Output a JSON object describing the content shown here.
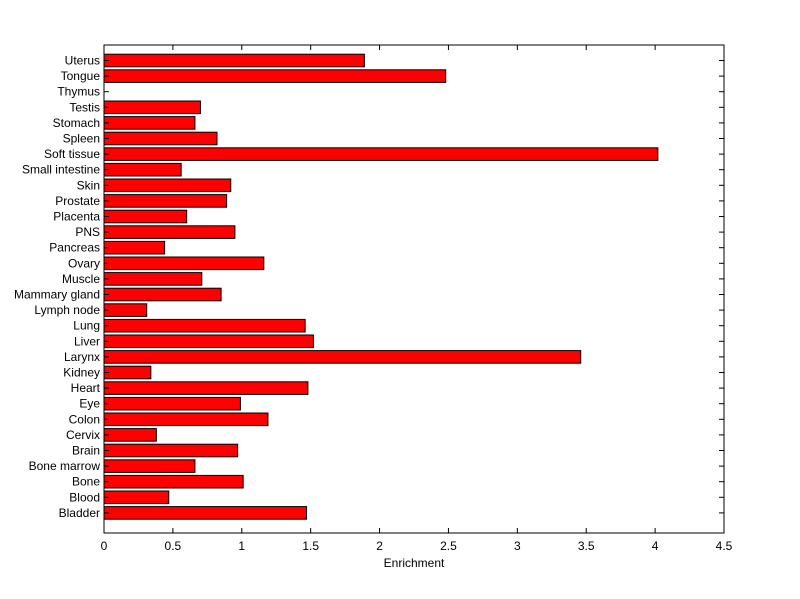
{
  "chart_data": {
    "type": "bar",
    "orientation": "horizontal",
    "xlabel": "Enrichment",
    "xlim": [
      0,
      4.5
    ],
    "xticks": [
      0,
      0.5,
      1,
      1.5,
      2,
      2.5,
      3,
      3.5,
      4,
      4.5
    ],
    "xtick_labels": [
      "0",
      "0.5",
      "1",
      "1.5",
      "2",
      "2.5",
      "3",
      "3.5",
      "4",
      "4.5"
    ],
    "grid": false,
    "bar_color": "#ff0000",
    "categories": [
      "Uterus",
      "Tongue",
      "Thymus",
      "Testis",
      "Stomach",
      "Spleen",
      "Soft tissue",
      "Small intestine",
      "Skin",
      "Prostate",
      "Placenta",
      "PNS",
      "Pancreas",
      "Ovary",
      "Muscle",
      "Mammary gland",
      "Lymph node",
      "Lung",
      "Liver",
      "Larynx",
      "Kidney",
      "Heart",
      "Eye",
      "Colon",
      "Cervix",
      "Brain",
      "Bone marrow",
      "Bone",
      "Blood",
      "Bladder"
    ],
    "values": [
      1.89,
      2.48,
      0.0,
      0.7,
      0.66,
      0.82,
      4.02,
      0.56,
      0.92,
      0.89,
      0.6,
      0.95,
      0.44,
      1.16,
      0.71,
      0.85,
      0.31,
      1.46,
      1.52,
      3.46,
      0.34,
      1.48,
      0.99,
      1.19,
      0.38,
      0.97,
      0.66,
      1.01,
      0.47,
      1.47
    ]
  }
}
